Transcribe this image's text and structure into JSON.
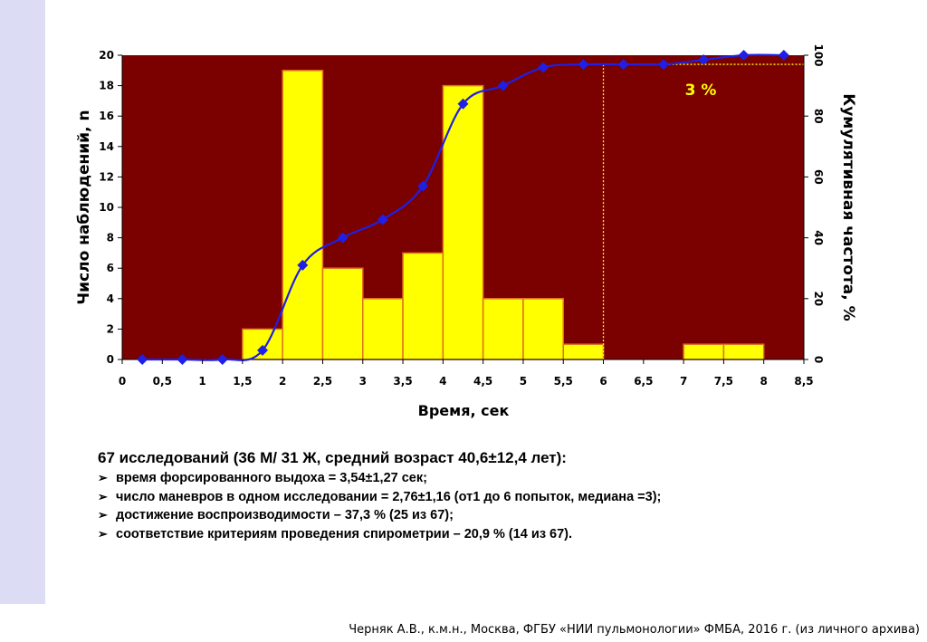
{
  "chart_data": {
    "type": "bar",
    "subtype": "histogram with cumulative frequency line",
    "xlabel": "Время, сек",
    "ylabel_left": "Число наблюдений, n",
    "ylabel_right": "Кумулятивная частота, %",
    "x_ticks": [
      "0",
      "0,5",
      "1",
      "1,5",
      "2",
      "2,5",
      "3",
      "3,5",
      "4",
      "4,5",
      "5",
      "5,5",
      "6",
      "6,5",
      "7",
      "7,5",
      "8",
      "8,5"
    ],
    "y_left_ticks": [
      "0",
      "2",
      "4",
      "6",
      "8",
      "10",
      "12",
      "14",
      "16",
      "18",
      "20"
    ],
    "y_right_ticks": [
      "0",
      "20",
      "40",
      "60",
      "80",
      "100"
    ],
    "xlim": [
      0,
      8.5
    ],
    "ylim_left": [
      0,
      20
    ],
    "ylim_right": [
      0,
      100
    ],
    "bin_width": 0.5,
    "bars": [
      {
        "x0": 1.5,
        "value": 2
      },
      {
        "x0": 2.0,
        "value": 19
      },
      {
        "x0": 2.5,
        "value": 6
      },
      {
        "x0": 3.0,
        "value": 4
      },
      {
        "x0": 3.5,
        "value": 7
      },
      {
        "x0": 4.0,
        "value": 18
      },
      {
        "x0": 4.5,
        "value": 4
      },
      {
        "x0": 5.0,
        "value": 4
      },
      {
        "x0": 5.5,
        "value": 1
      },
      {
        "x0": 7.0,
        "value": 1
      },
      {
        "x0": 7.5,
        "value": 1
      }
    ],
    "cumulative": {
      "x": [
        0.25,
        0.75,
        1.25,
        1.75,
        2.25,
        2.75,
        3.25,
        3.75,
        4.25,
        4.75,
        5.25,
        5.75,
        6.25,
        6.75,
        7.25,
        7.75,
        8.25
      ],
      "y": [
        0,
        0,
        0,
        3,
        31,
        40,
        46,
        57,
        84,
        90,
        96,
        97,
        97,
        97,
        98.5,
        100,
        100
      ]
    },
    "threshold": {
      "x": 6.0,
      "y": 97,
      "label": "3 %"
    },
    "colors": {
      "plot_bg": "#7b0000",
      "bar_fill": "#ffff00",
      "bar_edge": "#e07020",
      "line": "#1f1fe6",
      "threshold": "#ffff00"
    }
  },
  "stats": {
    "heading": "67 исследований (36 М/ 31 Ж, средний возраст 40,6±12,4 лет):",
    "bullet_glyph": "➢",
    "items": [
      "время форсированного выдоха = 3,54±1,27 сек;",
      "число маневров в одном исследовании = 2,76±1,16 (от1 до 6 попыток, медиана =3);",
      "достижение воспроизводимости – 37,3 % (25 из 67);",
      "соответствие критериям проведения спирометрии – 20,9 % (14 из 67)."
    ]
  },
  "footer": "Черняк А.В., к.м.н., Москва, ФГБУ «НИИ пульмонологии» ФМБА, 2016 г. (из личного архива)"
}
